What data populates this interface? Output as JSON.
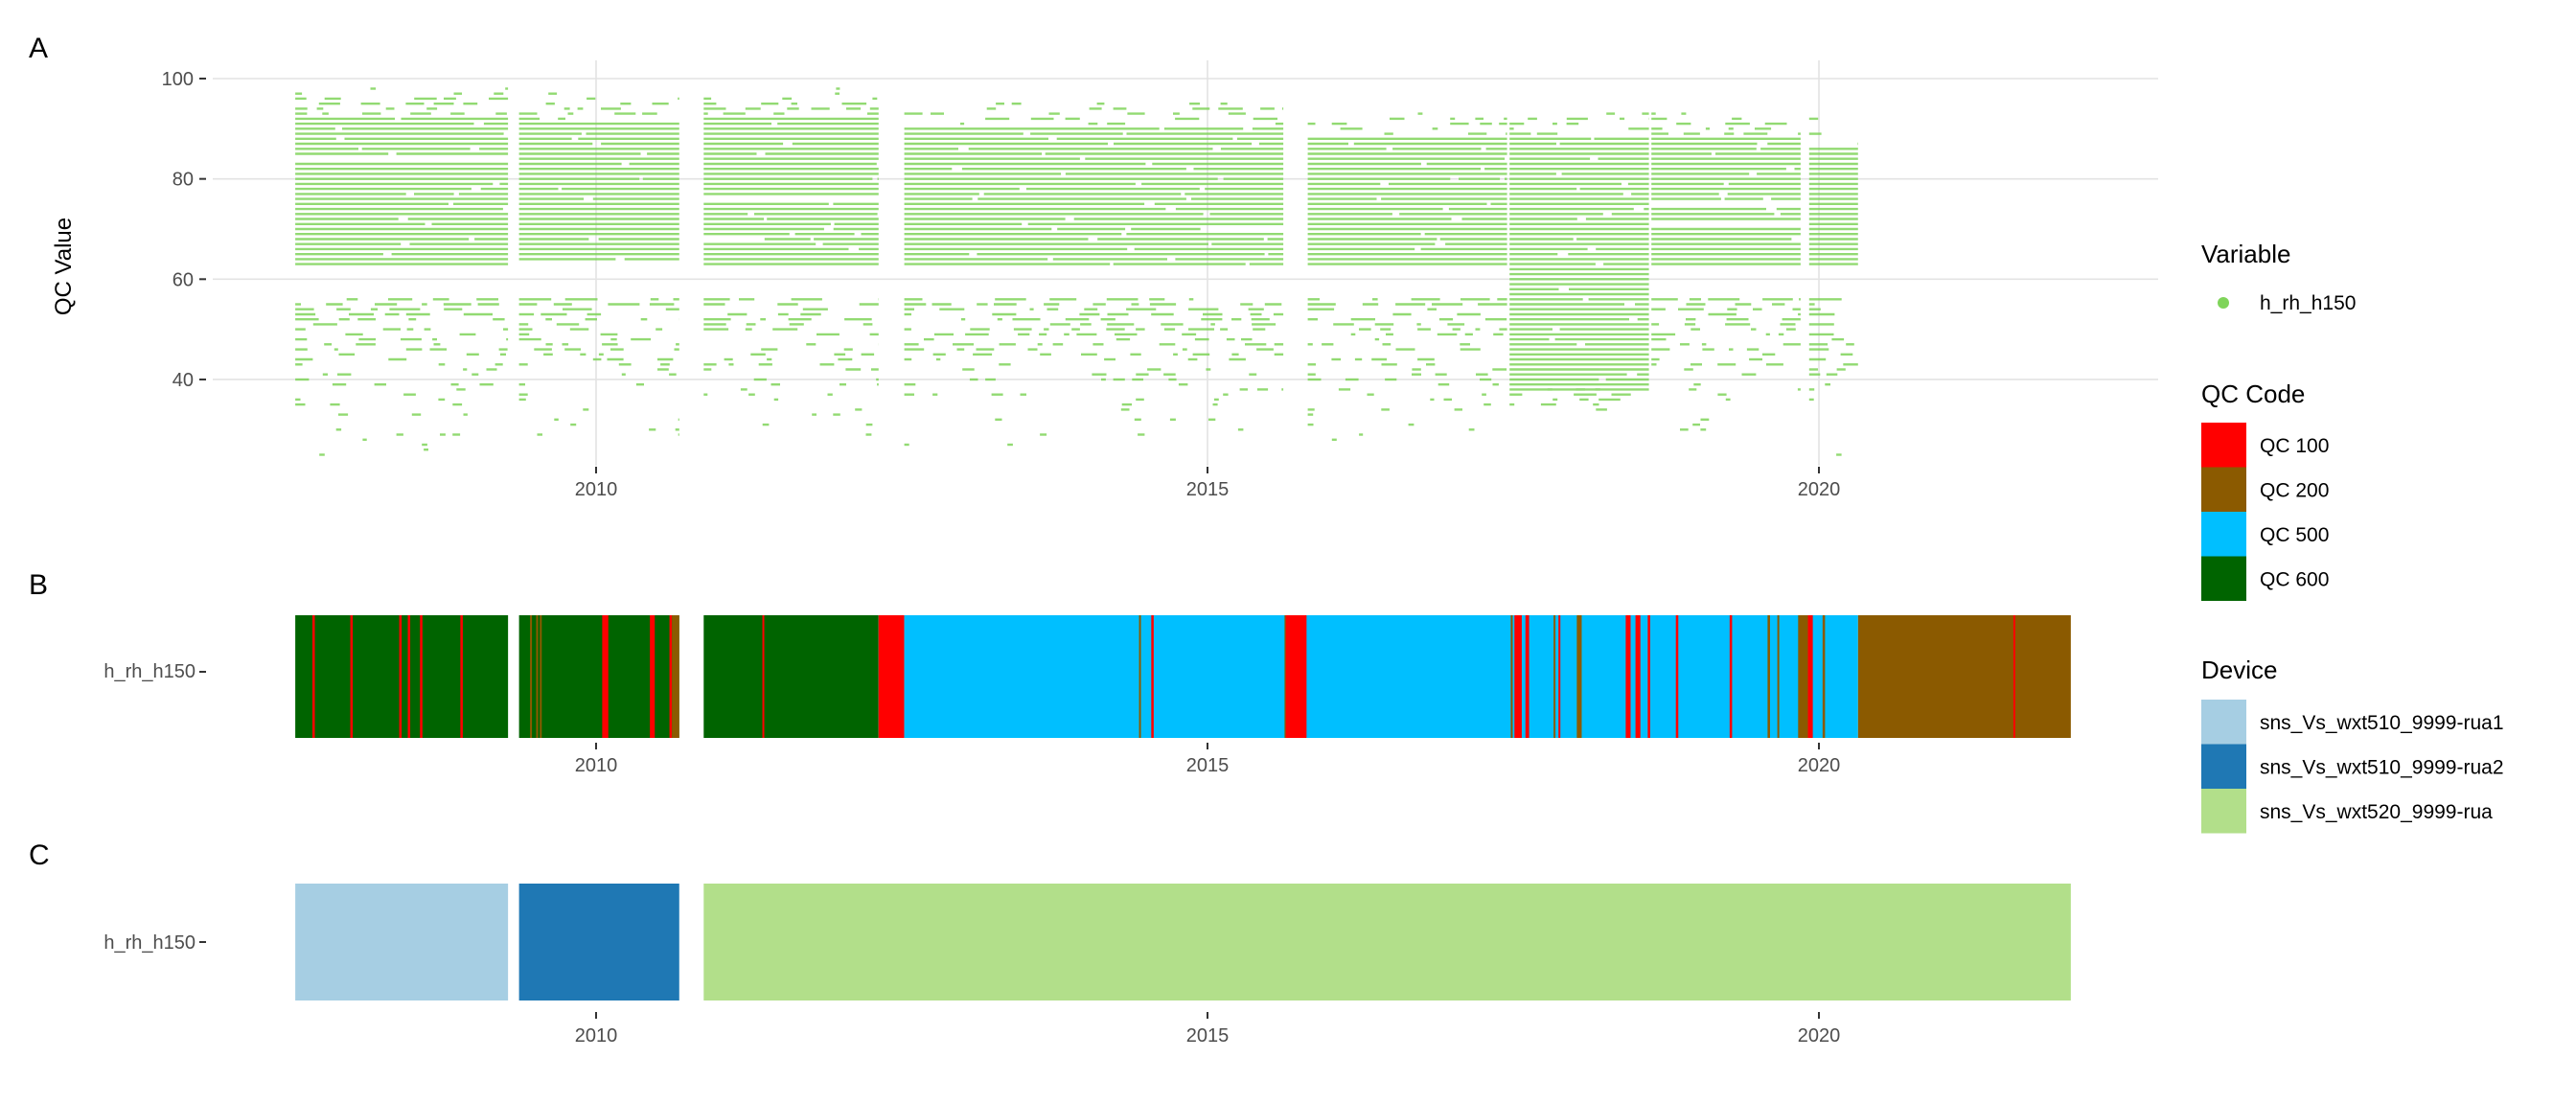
{
  "chart_data": [
    {
      "panel": "A",
      "type": "scatter",
      "ylabel": "QC Value",
      "xlabel": "",
      "ylim": [
        23,
        103
      ],
      "xlim": [
        2007.0,
        2023.2
      ],
      "yticks": [
        "40",
        "60",
        "80",
        "100"
      ],
      "ytick_values": [
        40,
        60,
        80,
        100
      ],
      "xticks": [
        "2010",
        "2015",
        "2020"
      ],
      "xtick_values": [
        2010,
        2015,
        2020
      ],
      "grid": true,
      "series_color": "#7fd45a",
      "note": "summary of hourly h_rh_h150 values per data block (integer-resolution rows)",
      "blocks": [
        {
          "start": 2007.54,
          "end": 2009.28,
          "dense": [
            63,
            96
          ],
          "sparse": [
            25,
            56
          ],
          "top": 98
        },
        {
          "start": 2009.37,
          "end": 2010.68,
          "dense": [
            63,
            95
          ],
          "sparse": [
            29,
            56
          ],
          "top": 97
        },
        {
          "start": 2010.88,
          "end": 2012.31,
          "dense": [
            63,
            96
          ],
          "sparse": [
            29,
            56
          ],
          "top": 98
        },
        {
          "start": 2012.52,
          "end": 2015.62,
          "dense": [
            63,
            94
          ],
          "sparse": [
            26,
            56
          ],
          "top": 95
        },
        {
          "start": 2015.82,
          "end": 2017.45,
          "dense": [
            63,
            92
          ],
          "sparse": [
            28,
            56
          ],
          "top": 93
        },
        {
          "start": 2017.47,
          "end": 2018.61,
          "dense": [
            38,
            92
          ],
          "sparse": [
            30,
            38
          ],
          "top": 93
        },
        {
          "start": 2018.63,
          "end": 2019.85,
          "dense": [
            63,
            92
          ],
          "sparse": [
            25,
            56
          ],
          "top": 93
        },
        {
          "start": 2019.92,
          "end": 2020.32,
          "dense": [
            63,
            90
          ],
          "sparse": [
            25,
            56
          ],
          "top": 92
        }
      ]
    },
    {
      "panel": "B",
      "type": "heatmap",
      "ylabel_tick": "h_rh_h150",
      "xticks": [
        "2010",
        "2015",
        "2020"
      ],
      "xtick_values": [
        2010,
        2015,
        2020
      ],
      "base_segments": [
        [
          2007.54,
          2009.28,
          "QC 600"
        ],
        [
          2009.37,
          2010.68,
          "QC 600"
        ],
        [
          2010.88,
          2012.31,
          "QC 600"
        ],
        [
          2012.31,
          2012.52,
          "QC 100"
        ],
        [
          2012.52,
          2020.32,
          "QC 500"
        ],
        [
          2020.32,
          2022.06,
          "QC 200"
        ]
      ],
      "overlay_segments": [
        [
          2007.68,
          2007.7,
          "QC 100"
        ],
        [
          2007.99,
          2008.01,
          "QC 100"
        ],
        [
          2008.39,
          2008.41,
          "QC 100"
        ],
        [
          2008.46,
          2008.48,
          "QC 100"
        ],
        [
          2008.56,
          2008.58,
          "QC 100"
        ],
        [
          2008.89,
          2008.91,
          "QC 100"
        ],
        [
          2009.46,
          2009.47,
          "QC 200"
        ],
        [
          2009.51,
          2009.52,
          "QC 200"
        ],
        [
          2009.54,
          2009.55,
          "QC 200"
        ],
        [
          2010.05,
          2010.1,
          "QC 100"
        ],
        [
          2010.44,
          2010.48,
          "QC 100"
        ],
        [
          2010.6,
          2010.62,
          "QC 100"
        ],
        [
          2010.62,
          2010.68,
          "QC 200"
        ],
        [
          2011.36,
          2011.37,
          "QC 100"
        ],
        [
          2014.44,
          2014.45,
          "QC 200"
        ],
        [
          2014.54,
          2014.56,
          "QC 100"
        ],
        [
          2015.63,
          2015.64,
          "QC 200"
        ],
        [
          2015.64,
          2015.81,
          "QC 100"
        ],
        [
          2017.48,
          2017.49,
          "QC 200"
        ],
        [
          2017.51,
          2017.57,
          "QC 100"
        ],
        [
          2017.6,
          2017.63,
          "QC 100"
        ],
        [
          2017.83,
          2017.84,
          "QC 200"
        ],
        [
          2017.87,
          2017.88,
          "QC 100"
        ],
        [
          2018.02,
          2018.06,
          "QC 200"
        ],
        [
          2018.42,
          2018.46,
          "QC 100"
        ],
        [
          2018.5,
          2018.54,
          "QC 100"
        ],
        [
          2018.6,
          2018.62,
          "QC 100"
        ],
        [
          2018.83,
          2018.85,
          "QC 100"
        ],
        [
          2019.27,
          2019.29,
          "QC 100"
        ],
        [
          2019.58,
          2019.6,
          "QC 200"
        ],
        [
          2019.66,
          2019.67,
          "QC 200"
        ],
        [
          2019.83,
          2019.91,
          "QC 200"
        ],
        [
          2019.91,
          2019.95,
          "QC 100"
        ],
        [
          2020.03,
          2020.05,
          "QC 200"
        ],
        [
          2021.59,
          2021.6,
          "QC 100"
        ]
      ]
    },
    {
      "panel": "C",
      "type": "heatmap",
      "ylabel_tick": "h_rh_h150",
      "xticks": [
        "2010",
        "2015",
        "2020"
      ],
      "xtick_values": [
        2010,
        2015,
        2020
      ],
      "segments": [
        [
          2007.54,
          2009.28,
          "sns_Vs_wxt510_9999-rua1"
        ],
        [
          2009.37,
          2010.68,
          "sns_Vs_wxt510_9999-rua2"
        ],
        [
          2010.88,
          2022.06,
          "sns_Vs_wxt520_9999-rua"
        ]
      ]
    }
  ],
  "panel_tags": {
    "a": "A",
    "b": "B",
    "c": "C"
  },
  "legend": {
    "variable": {
      "title": "Variable",
      "items": [
        {
          "label": "h_rh_h150",
          "color": "#7fd45a"
        }
      ]
    },
    "qc": {
      "title": "QC Code",
      "items": [
        {
          "label": "QC 100",
          "color": "#ff0000"
        },
        {
          "label": "QC 200",
          "color": "#8b5a00"
        },
        {
          "label": "QC 500",
          "color": "#00bfff"
        },
        {
          "label": "QC 600",
          "color": "#006400"
        }
      ]
    },
    "device": {
      "title": "Device",
      "items": [
        {
          "label": "sns_Vs_wxt510_9999-rua1",
          "color": "#a6cee3"
        },
        {
          "label": "sns_Vs_wxt510_9999-rua2",
          "color": "#1f78b4"
        },
        {
          "label": "sns_Vs_wxt520_9999-rua",
          "color": "#b2df8a"
        }
      ]
    }
  }
}
